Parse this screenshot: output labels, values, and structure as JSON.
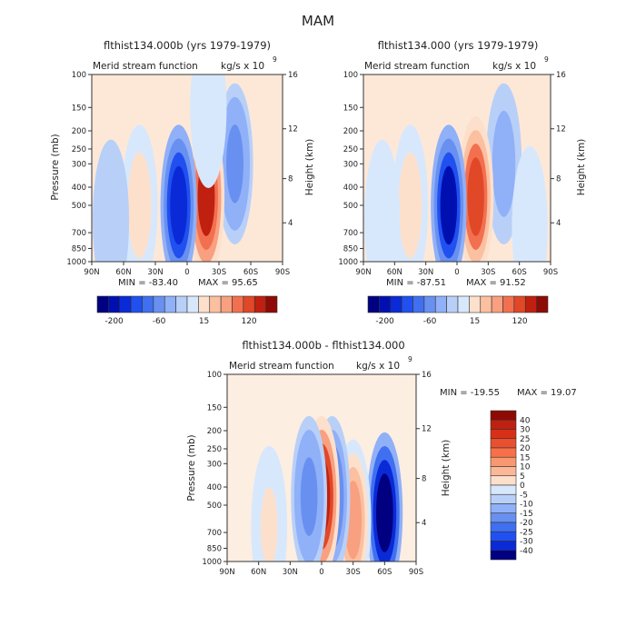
{
  "page_title": "MAM",
  "chart_data": [
    {
      "type": "contour",
      "title": "flthist134.000b (yrs 1979-1979)",
      "subtitle_left": "Merid stream function",
      "units_prefix": "kg/s x 10",
      "units_exp": "9",
      "ylabel": "Pressure (mb)",
      "ylabel_right": "Height (km)",
      "x_ticks": [
        "90N",
        "60N",
        "30N",
        "0",
        "30S",
        "60S",
        "90S"
      ],
      "y_ticks": [
        "100",
        "150",
        "200",
        "250",
        "300",
        "400",
        "500",
        "700",
        "850",
        "1000"
      ],
      "y_ticks_right": [
        "16",
        "12",
        "8",
        "4"
      ],
      "stats": {
        "min_label": "MIN = -83.40",
        "max_label": "MAX = 95.65"
      },
      "colorbar": {
        "orientation": "horizontal",
        "labels": [
          "-200",
          "-60",
          "15",
          "120"
        ]
      },
      "cells": [
        {
          "lat": -45,
          "p": 300,
          "v": -30
        },
        {
          "lat": -18,
          "p": 450,
          "v": 80
        },
        {
          "lat": 8,
          "p": 500,
          "v": -75
        },
        {
          "lat": 45,
          "p": 500,
          "v": 25
        },
        {
          "lat": 72,
          "p": 600,
          "v": -5
        },
        {
          "lat": -20,
          "p": 150,
          "v": 5
        }
      ]
    },
    {
      "type": "contour",
      "title": "flthist134.000 (yrs 1979-1979)",
      "subtitle_left": "Merid stream function",
      "units_prefix": "kg/s x 10",
      "units_exp": "9",
      "ylabel": "Pressure (mb)",
      "ylabel_right": "Height (km)",
      "x_ticks": [
        "90N",
        "60N",
        "30N",
        "0",
        "30S",
        "60S",
        "90S"
      ],
      "y_ticks": [
        "100",
        "150",
        "200",
        "250",
        "300",
        "400",
        "500",
        "700",
        "850",
        "1000"
      ],
      "y_ticks_right": [
        "16",
        "12",
        "8",
        "4"
      ],
      "stats": {
        "min_label": "MIN = -87.51",
        "max_label": "MAX = 91.52"
      },
      "colorbar": {
        "orientation": "horizontal",
        "labels": [
          "-200",
          "-60",
          "15",
          "120"
        ]
      },
      "cells": [
        {
          "lat": -45,
          "p": 300,
          "v": -25
        },
        {
          "lat": -18,
          "p": 450,
          "v": 75
        },
        {
          "lat": 8,
          "p": 500,
          "v": -80
        },
        {
          "lat": 45,
          "p": 500,
          "v": 25
        },
        {
          "lat": 72,
          "p": 600,
          "v": 10
        },
        {
          "lat": -70,
          "p": 650,
          "v": 10
        }
      ]
    },
    {
      "type": "contour",
      "title": "flthist134.000b - flthist134.000",
      "subtitle_left": "Merid stream function",
      "units_prefix": "kg/s x 10",
      "units_exp": "9",
      "ylabel": "Pressure (mb)",
      "ylabel_right": "Height (km)",
      "x_ticks": [
        "90N",
        "60N",
        "30N",
        "0",
        "30S",
        "60S",
        "90S"
      ],
      "y_ticks": [
        "100",
        "150",
        "200",
        "250",
        "300",
        "400",
        "500",
        "700",
        "850",
        "1000"
      ],
      "y_ticks_right": [
        "16",
        "12",
        "8",
        "4"
      ],
      "stats": {
        "min_label": "MIN = -19.55",
        "max_label": "MAX =  19.07"
      },
      "colorbar": {
        "orientation": "vertical",
        "labels": [
          "40",
          "30",
          "25",
          "20",
          "15",
          "10",
          "5",
          "0",
          "-5",
          "-10",
          "-15",
          "-20",
          "-25",
          "-30",
          "-40"
        ]
      },
      "cells": [
        {
          "lat": -60,
          "p": 550,
          "v": -19
        },
        {
          "lat": -30,
          "p": 600,
          "v": 10
        },
        {
          "lat": -10,
          "p": 450,
          "v": -8
        },
        {
          "lat": 0,
          "p": 450,
          "v": 18
        },
        {
          "lat": 12,
          "p": 450,
          "v": -6
        },
        {
          "lat": 50,
          "p": 650,
          "v": 3
        }
      ]
    }
  ],
  "colors": {
    "horizontal_palette": [
      "#000080",
      "#0010b0",
      "#0a2ad8",
      "#2050f0",
      "#4070f0",
      "#6890f0",
      "#90b0f8",
      "#b8d0f8",
      "#d8e8fc",
      "#fde0cc",
      "#fbc0a0",
      "#f8a080",
      "#f27050",
      "#e04828",
      "#c02010",
      "#8e0b05"
    ],
    "vertical_palette": [
      "#8e0b05",
      "#c02010",
      "#d83018",
      "#e85030",
      "#f87048",
      "#f89870",
      "#fbb898",
      "#fde0cc",
      "#d8e8fc",
      "#b8d0f8",
      "#90b0f8",
      "#6890f0",
      "#4070f0",
      "#2050f0",
      "#0a2ad8",
      "#000080"
    ]
  }
}
